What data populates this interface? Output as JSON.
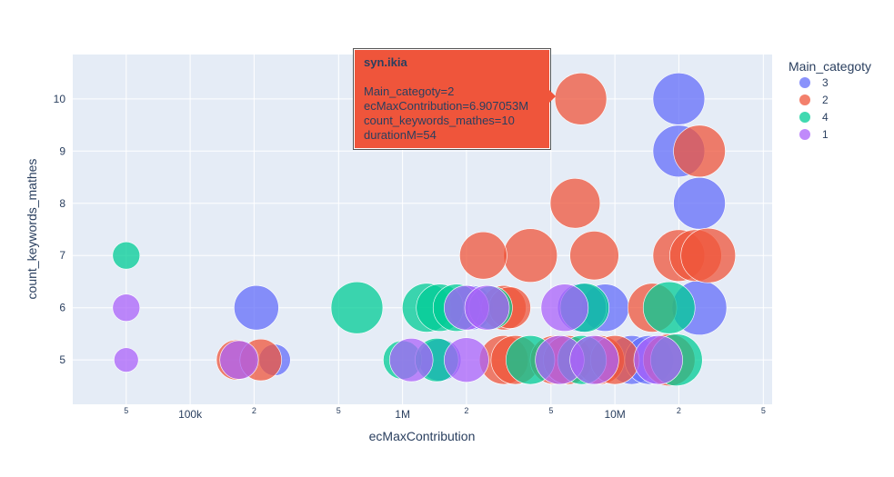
{
  "chart_data": {
    "type": "scatter",
    "xlabel": "ecMaxContribution",
    "ylabel": "count_keywords_mathes",
    "xscale": "log",
    "xlim": [
      28000,
      55000000
    ],
    "ylim": [
      4.15,
      10.85
    ],
    "x_tick_labels": [
      {
        "value": 50000,
        "label": "5"
      },
      {
        "value": 100000,
        "label": "100k"
      },
      {
        "value": 200000,
        "label": "2"
      },
      {
        "value": 500000,
        "label": "5"
      },
      {
        "value": 1000000,
        "label": "1M"
      },
      {
        "value": 2000000,
        "label": "2"
      },
      {
        "value": 5000000,
        "label": "5"
      },
      {
        "value": 10000000,
        "label": "10M"
      },
      {
        "value": 20000000,
        "label": "2"
      },
      {
        "value": 50000000,
        "label": "5"
      }
    ],
    "y_ticks": [
      5,
      6,
      7,
      8,
      9,
      10
    ],
    "grid": true,
    "legend": {
      "title": "Main_categoty",
      "placement": "right"
    },
    "size_field": "durationM",
    "series": [
      {
        "name": "3",
        "color": "#636efa",
        "points": [
          {
            "x": 20000000,
            "y": 10,
            "size": 54
          },
          {
            "x": 20000000,
            "y": 9,
            "size": 54
          },
          {
            "x": 25000000,
            "y": 8,
            "size": 54
          },
          {
            "x": 25000000,
            "y": 6,
            "size": 60
          },
          {
            "x": 205000,
            "y": 6,
            "size": 40
          },
          {
            "x": 250000,
            "y": 5,
            "size": 20
          },
          {
            "x": 9000000,
            "y": 6,
            "size": 45
          },
          {
            "x": 7000000,
            "y": 6,
            "size": 48
          },
          {
            "x": 12000000,
            "y": 5,
            "size": 48
          },
          {
            "x": 14500000,
            "y": 5,
            "size": 48
          },
          {
            "x": 1500000,
            "y": 5,
            "size": 36
          },
          {
            "x": 2100000,
            "y": 6,
            "size": 40
          }
        ]
      },
      {
        "name": "2",
        "color": "#ef553b",
        "points": [
          {
            "x": 6907053,
            "y": 10,
            "size": 54
          },
          {
            "x": 25000000,
            "y": 9,
            "size": 54
          },
          {
            "x": 6500000,
            "y": 8,
            "size": 50
          },
          {
            "x": 20000000,
            "y": 7,
            "size": 54
          },
          {
            "x": 24000000,
            "y": 7,
            "size": 54
          },
          {
            "x": 27500000,
            "y": 7,
            "size": 60
          },
          {
            "x": 8000000,
            "y": 7,
            "size": 48
          },
          {
            "x": 4000000,
            "y": 7,
            "size": 58
          },
          {
            "x": 2400000,
            "y": 7,
            "size": 45
          },
          {
            "x": 15000000,
            "y": 6,
            "size": 48
          },
          {
            "x": 3000000,
            "y": 6,
            "size": 40
          },
          {
            "x": 3200000,
            "y": 6,
            "size": 35
          },
          {
            "x": 165000,
            "y": 5,
            "size": 32
          },
          {
            "x": 215000,
            "y": 5,
            "size": 35
          },
          {
            "x": 3000000,
            "y": 5,
            "size": 48
          },
          {
            "x": 3400000,
            "y": 5,
            "size": 48
          },
          {
            "x": 5200000,
            "y": 5,
            "size": 48
          },
          {
            "x": 6000000,
            "y": 5,
            "size": 48
          },
          {
            "x": 8500000,
            "y": 5,
            "size": 48
          },
          {
            "x": 10000000,
            "y": 5,
            "size": 48
          },
          {
            "x": 18000000,
            "y": 5,
            "size": 54
          }
        ]
      },
      {
        "name": "4",
        "color": "#00cc96",
        "points": [
          {
            "x": 50000,
            "y": 7,
            "size": 15
          },
          {
            "x": 610000,
            "y": 6,
            "size": 54
          },
          {
            "x": 1300000,
            "y": 6,
            "size": 48
          },
          {
            "x": 1500000,
            "y": 6,
            "size": 45
          },
          {
            "x": 1800000,
            "y": 6,
            "size": 45
          },
          {
            "x": 2600000,
            "y": 6,
            "size": 38
          },
          {
            "x": 7200000,
            "y": 6,
            "size": 48
          },
          {
            "x": 18000000,
            "y": 6,
            "size": 54
          },
          {
            "x": 1000000,
            "y": 5,
            "size": 30
          },
          {
            "x": 1450000,
            "y": 5,
            "size": 38
          },
          {
            "x": 4000000,
            "y": 5,
            "size": 48
          },
          {
            "x": 7000000,
            "y": 5,
            "size": 48
          },
          {
            "x": 19500000,
            "y": 5,
            "size": 54
          }
        ]
      },
      {
        "name": "1",
        "color": "#ab63fa",
        "points": [
          {
            "x": 50000,
            "y": 6,
            "size": 15
          },
          {
            "x": 50000,
            "y": 5,
            "size": 12
          },
          {
            "x": 170000,
            "y": 5,
            "size": 30
          },
          {
            "x": 2000000,
            "y": 6,
            "size": 40
          },
          {
            "x": 2500000,
            "y": 6,
            "size": 40
          },
          {
            "x": 5800000,
            "y": 6,
            "size": 45
          },
          {
            "x": 1100000,
            "y": 5,
            "size": 38
          },
          {
            "x": 2000000,
            "y": 5,
            "size": 40
          },
          {
            "x": 5500000,
            "y": 5,
            "size": 48
          },
          {
            "x": 8000000,
            "y": 5,
            "size": 48
          },
          {
            "x": 16000000,
            "y": 5,
            "size": 48
          }
        ]
      }
    ]
  },
  "tooltip": {
    "title": "syn.ikia",
    "lines": [
      "Main_categoty=2",
      "ecMaxContribution=6.907053M",
      "count_keywords_mathes=10",
      "durationM=54"
    ]
  }
}
